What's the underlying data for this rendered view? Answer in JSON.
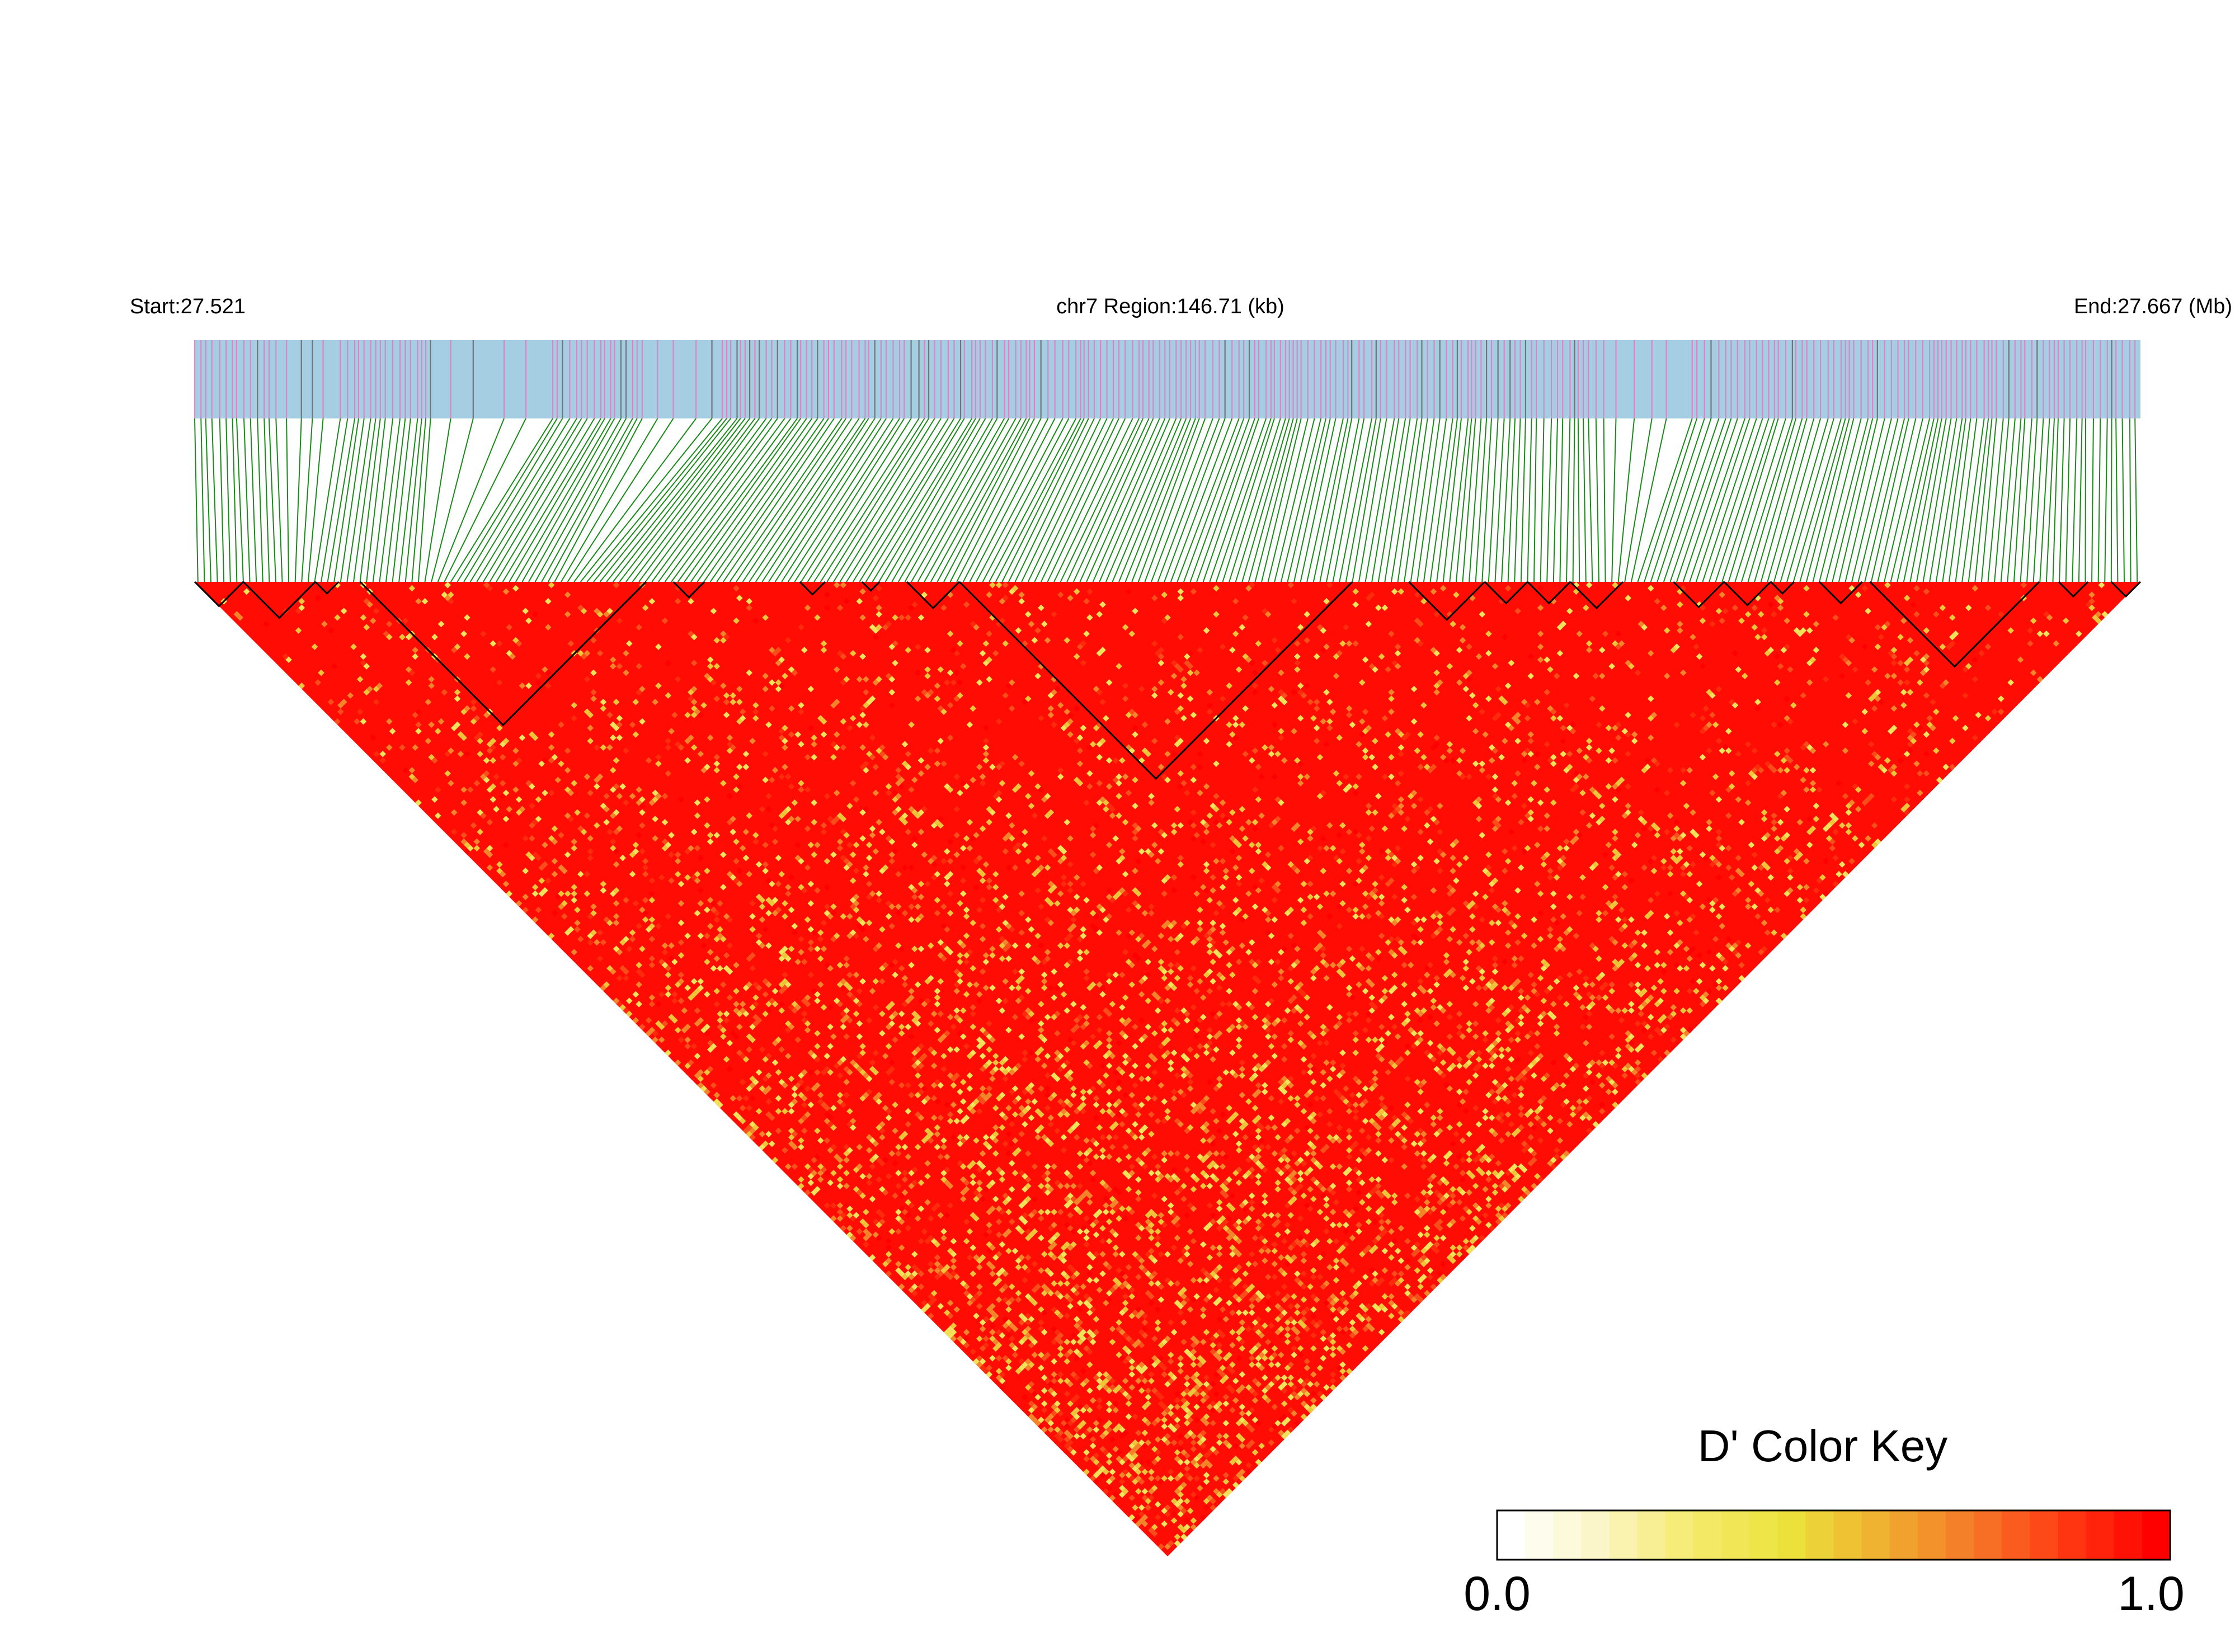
{
  "header": {
    "start_label": "Start:27.521",
    "region_label": "chr7 Region:146.71 (kb)",
    "end_label": "End:27.667 (Mb)"
  },
  "colors": {
    "track_bg": "#a6cee3",
    "snp_tick": "#e07bc0",
    "snp_tick_alt": "#666666",
    "connector": "#1a8a1a",
    "heatmap_high": "#ff0000",
    "heatmap_mid": "#f5e64a",
    "heatmap_low": "#ffffff",
    "block_outline": "#000000"
  },
  "chart_data": {
    "type": "heatmap",
    "description_kind": "LD triangle (D')",
    "chromosome": "chr7",
    "region_start_mb": 27.521,
    "region_end_mb": 27.667,
    "region_size_kb": 146.71,
    "metric": "D'",
    "value_range": [
      0.0,
      1.0
    ],
    "typical_value": 0.95,
    "approx_snp_count": 300,
    "ld_blocks_fraction": [
      [
        0.0,
        0.025
      ],
      [
        0.025,
        0.062
      ],
      [
        0.062,
        0.074
      ],
      [
        0.085,
        0.232
      ],
      [
        0.246,
        0.262
      ],
      [
        0.311,
        0.324
      ],
      [
        0.343,
        0.352
      ],
      [
        0.366,
        0.393
      ],
      [
        0.393,
        0.595
      ],
      [
        0.624,
        0.663
      ],
      [
        0.663,
        0.685
      ],
      [
        0.685,
        0.707
      ],
      [
        0.707,
        0.734
      ],
      [
        0.76,
        0.786
      ],
      [
        0.786,
        0.81
      ],
      [
        0.81,
        0.822
      ],
      [
        0.835,
        0.857
      ],
      [
        0.861,
        0.948
      ],
      [
        0.958,
        0.973
      ],
      [
        0.985,
        1.0
      ]
    ],
    "color_key": {
      "title": "D' Color Key",
      "min_label": "0.0",
      "max_label": "1.0",
      "stops": [
        "#ffffff",
        "#fbf5c4",
        "#f5ea6a",
        "#ece33c",
        "#f0b030",
        "#f57a28",
        "#ff3a14",
        "#ff0000"
      ]
    }
  }
}
